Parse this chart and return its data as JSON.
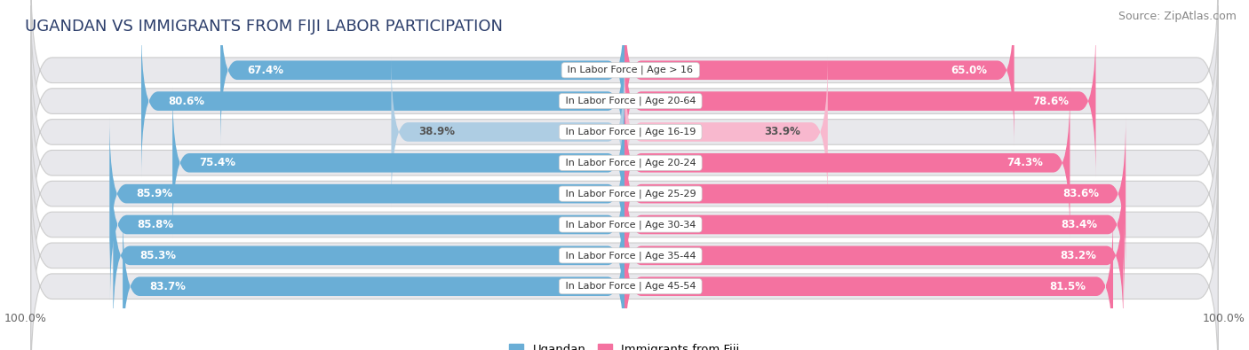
{
  "title": "UGANDAN VS IMMIGRANTS FROM FIJI LABOR PARTICIPATION",
  "source": "Source: ZipAtlas.com",
  "categories": [
    "In Labor Force | Age > 16",
    "In Labor Force | Age 20-64",
    "In Labor Force | Age 16-19",
    "In Labor Force | Age 20-24",
    "In Labor Force | Age 25-29",
    "In Labor Force | Age 30-34",
    "In Labor Force | Age 35-44",
    "In Labor Force | Age 45-54"
  ],
  "ugandan": [
    67.4,
    80.6,
    38.9,
    75.4,
    85.9,
    85.8,
    85.3,
    83.7
  ],
  "fiji": [
    65.0,
    78.6,
    33.9,
    74.3,
    83.6,
    83.4,
    83.2,
    81.5
  ],
  "ugandan_color": "#6aaed6",
  "ugandan_color_light": "#aecde3",
  "fiji_color": "#f472a0",
  "fiji_color_light": "#f8b8ce",
  "row_bg_color": "#e8e8ec",
  "bar_height": 0.62,
  "max_val": 100.0,
  "legend_ugandan": "Ugandan",
  "legend_fiji": "Immigrants from Fiji",
  "title_fontsize": 13,
  "label_fontsize": 8.5,
  "source_fontsize": 9,
  "cat_label_fontsize": 8.0,
  "value_label_fontsize": 8.5
}
